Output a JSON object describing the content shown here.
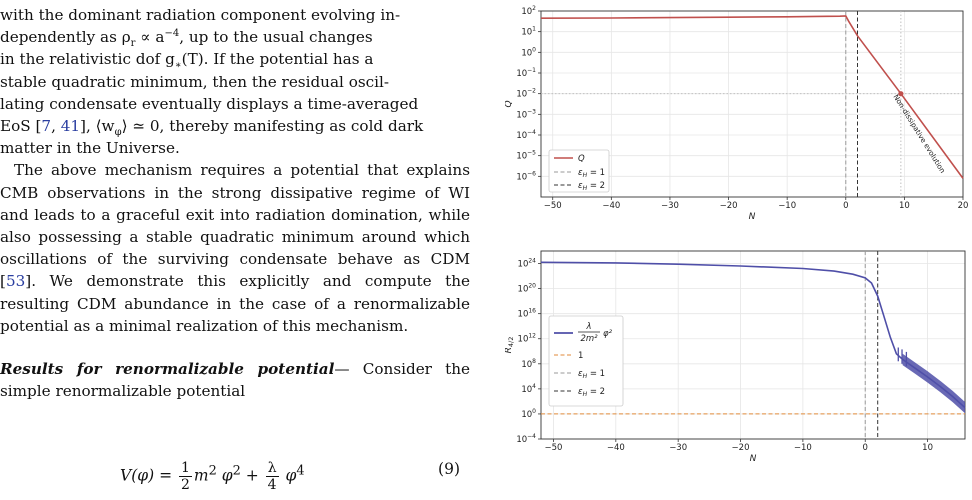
{
  "text": {
    "p1_line1": "with the dominant radiation component evolving in-",
    "p1_line2": "dependently as ρ",
    "p1_line2b": " ∝ a",
    "p1_line2c": ", up to the usual changes",
    "p1_line3": "in the relativistic dof g",
    "p1_line3b": "(T).  If the potential has a",
    "p1_line4": "stable quadratic minimum, then the residual oscil-",
    "p1_line5": "lating condensate eventually displays a time-averaged",
    "p1_line6a": "EoS [",
    "cite_7": "7",
    "cite_41": "41",
    "p1_line6b": "], ⟨w",
    "p1_line6c": "⟩ ≃ 0, thereby manifesting as cold dark",
    "p1_line7": "matter in the Universe.",
    "p2": "The above mechanism requires a potential that explains CMB observations in the strong dissipative regime of WI and leads to a graceful exit into radiation domination, while also possessing a stable quadratic minimum around which oscillations of the surviving condensate behave as CDM [",
    "cite_53": "53",
    "p2b": "]. We demonstrate this explicitly and compute the resulting CDM abundance in the case of a renormalizable potential as a minimal realization of this mechanism.",
    "runin": "Results for renormalizable potential",
    "p3": "— Consider the simple renormalizable potential",
    "sub_r": "r",
    "sup_m4": "−4",
    "sub_star": "∗",
    "sub_phi": "φ",
    "eq_lhs": "V(φ) = ",
    "eq_m2": "m",
    "eq_phi2": "φ",
    "eq_plus": " + ",
    "eq_phi4": "φ",
    "eq_half_num": "1",
    "eq_half_den": "2",
    "eq_lam_num": "λ",
    "eq_lam_den": "4",
    "eq_number": "(9)"
  },
  "colors": {
    "q_curve": "#c0504d",
    "r_band": "#4f4fa8",
    "eps1_line": "#9a9a9a",
    "eps2_line": "#333333",
    "one_line": "#e08a3a",
    "grid": "#e6e6e6",
    "refline": "#b9b9b9"
  },
  "chart_data": [
    {
      "type": "line",
      "xlabel": "N",
      "ylabel": "Q",
      "xlim": [
        -52,
        20
      ],
      "ylim_log10": [
        -7,
        2
      ],
      "log_y": true,
      "grid": true,
      "x_ticks": [
        "−50",
        "−40",
        "−30",
        "−20",
        "−10",
        "0",
        "10",
        "20"
      ],
      "y_ticks": [
        "10^2",
        "10^1",
        "10^0",
        "10^-1",
        "10^-2",
        "10^-3",
        "10^-4",
        "10^-5",
        "10^-6"
      ],
      "series": [
        {
          "name": "Q",
          "x": [
            -52,
            -40,
            -30,
            -20,
            -10,
            -5,
            -1,
            0,
            0.5,
            2,
            9.4,
            20
          ],
          "y_log10": [
            1.65,
            1.66,
            1.68,
            1.7,
            1.72,
            1.74,
            1.75,
            1.76,
            1.5,
            0.8,
            -2.0,
            -6.1
          ]
        }
      ],
      "vlines": [
        {
          "name": "ε_H = 1",
          "x": 0,
          "style": "dashed"
        },
        {
          "name": "ε_H = 2",
          "x": 2,
          "style": "dashed"
        }
      ],
      "ref_vline_x": 9.4,
      "ref_hline_y_log10": -2,
      "point": {
        "x": 9.4,
        "y_log10": -2
      },
      "annotation": "Non-dissipative evolution",
      "legend_position": "lower-left",
      "legend": [
        "Q",
        "ε_H = 1",
        "ε_H = 2"
      ]
    },
    {
      "type": "line",
      "xlabel": "N",
      "ylabel": "R_{4/2}",
      "xlim": [
        -52,
        16
      ],
      "ylim_log10": [
        -4,
        26
      ],
      "log_y": true,
      "grid": true,
      "x_ticks": [
        "−50",
        "−40",
        "−30",
        "−20",
        "−10",
        "0",
        "10"
      ],
      "y_ticks": [
        "10^24",
        "10^20",
        "10^16",
        "10^12",
        "10^8",
        "10^4",
        "10^0",
        "10^-4"
      ],
      "series": [
        {
          "name": "λ/(2m²) φ²",
          "x": [
            -52,
            -40,
            -30,
            -20,
            -10,
            -5,
            -2,
            0,
            1,
            2,
            3,
            4,
            5,
            6,
            8,
            10,
            12,
            14,
            16
          ],
          "y_log10": [
            24.2,
            24.1,
            23.9,
            23.6,
            23.2,
            22.8,
            22.3,
            21.7,
            20.9,
            18.8,
            15.6,
            12.3,
            9.6,
            8.7,
            7.3,
            5.9,
            4.4,
            2.8,
            1.0
          ]
        },
        {
          "name": "1",
          "x": [
            -52,
            16
          ],
          "y_log10": [
            0,
            0
          ]
        }
      ],
      "vlines": [
        {
          "name": "ε_H = 1",
          "x": 0,
          "style": "dashed"
        },
        {
          "name": "ε_H = 2",
          "x": 2,
          "style": "dashed"
        }
      ],
      "legend_position": "center-left",
      "legend": [
        "λ/(2m²) φ²",
        "1",
        "ε_H = 1",
        "ε_H = 2"
      ]
    }
  ]
}
